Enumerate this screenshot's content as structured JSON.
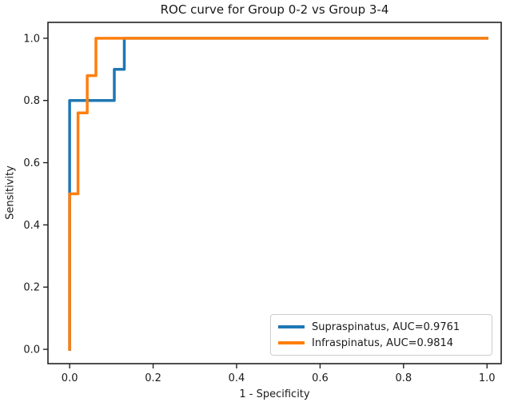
{
  "chart_data": {
    "type": "line",
    "subtype": "roc-step-curves",
    "title": "ROC curve for Group 0-2 vs Group 3-4",
    "xlabel": "1 - Specificity",
    "ylabel": "Sensitivity",
    "xlim": [
      -0.052,
      1.034
    ],
    "ylim": [
      -0.046,
      1.051
    ],
    "x_ticks": [
      0.0,
      0.2,
      0.4,
      0.6,
      0.8,
      1.0
    ],
    "x_tick_labels": [
      "0.0",
      "0.2",
      "0.4",
      "0.6",
      "0.8",
      "1.0"
    ],
    "y_ticks": [
      0.0,
      0.2,
      0.4,
      0.6,
      0.8,
      1.0
    ],
    "y_tick_labels": [
      "0.0",
      "0.2",
      "0.4",
      "0.6",
      "0.8",
      "1.0"
    ],
    "grid": false,
    "legend_position": "lower right",
    "series": [
      {
        "name": "Supraspinatus",
        "auc": 0.9761,
        "legend_label": "Supraspinatus, AUC=0.9761",
        "color": "#1f77b4",
        "x": [
          0,
          0,
          0.107,
          0.107,
          0.131,
          0.131,
          1.0
        ],
        "y": [
          0,
          0.8,
          0.8,
          0.9,
          0.9,
          1.0,
          1.0
        ]
      },
      {
        "name": "Infraspinatus",
        "auc": 0.9814,
        "legend_label": "Infraspinatus, AUC=0.9814",
        "color": "#ff7f0e",
        "x": [
          0,
          0,
          0.02,
          0.02,
          0.042,
          0.042,
          0.063,
          0.063,
          1.0
        ],
        "y": [
          0,
          0.5,
          0.5,
          0.76,
          0.76,
          0.88,
          0.88,
          1.0,
          1.0
        ]
      }
    ]
  }
}
